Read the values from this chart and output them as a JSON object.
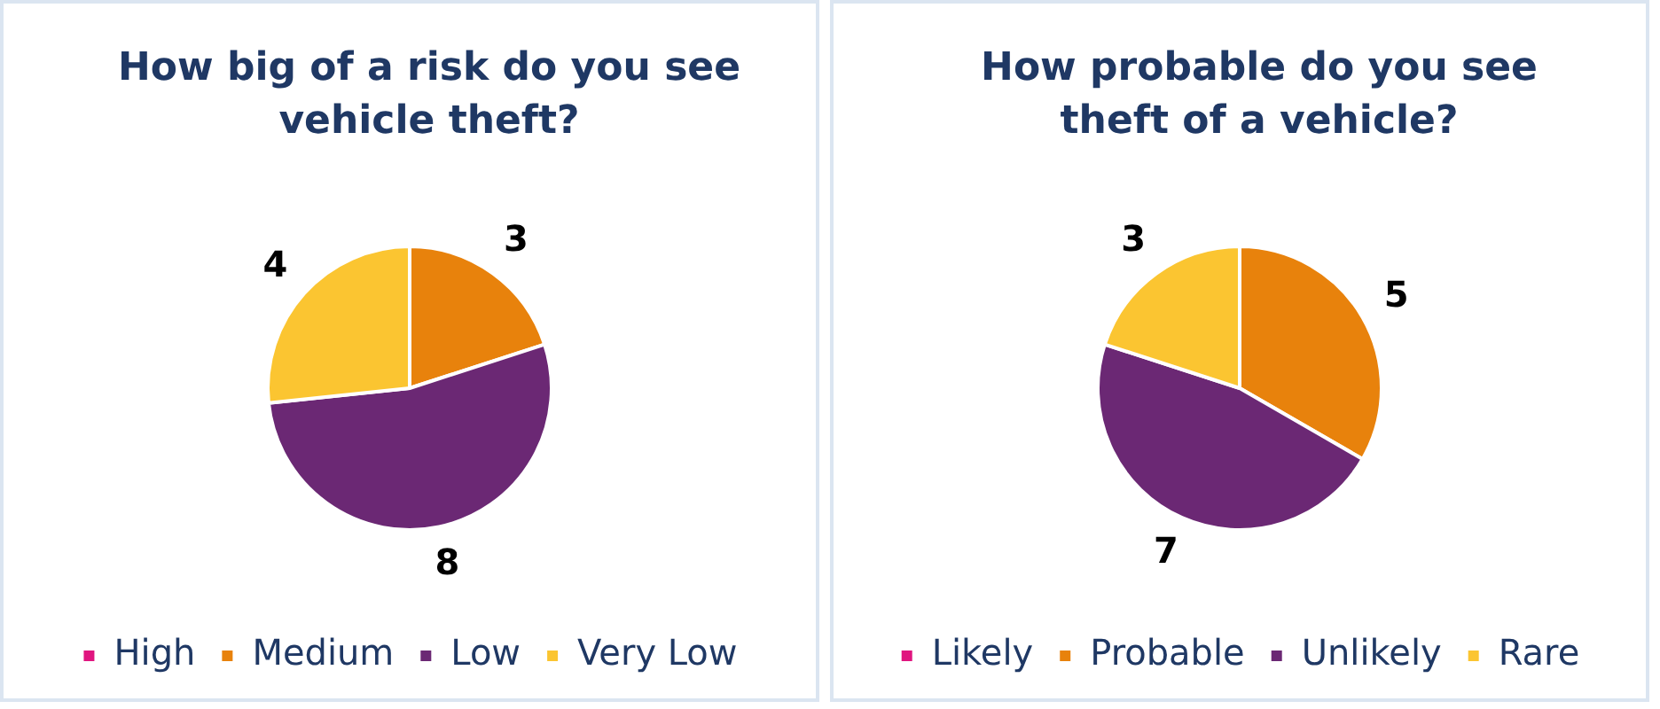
{
  "chart_data": [
    {
      "type": "pie",
      "title": "How big of a risk do you see vehicle theft?",
      "categories": [
        "High",
        "Medium",
        "Low",
        "Very Low"
      ],
      "values": [
        0,
        3,
        8,
        4
      ],
      "colors": [
        "#e0157f",
        "#e8820c",
        "#6b2874",
        "#fbc531"
      ],
      "value_labels": [
        null,
        "3",
        "8",
        "4"
      ],
      "legend": "bottom"
    },
    {
      "type": "pie",
      "title": "How probable do you see theft of a vehicle?",
      "categories": [
        "Likely",
        "Probable",
        "Unlikely",
        "Rare"
      ],
      "values": [
        0,
        5,
        7,
        3
      ],
      "colors": [
        "#e0157f",
        "#e8820c",
        "#6b2874",
        "#fbc531"
      ],
      "value_labels": [
        null,
        "5",
        "7",
        "3"
      ],
      "legend": "bottom"
    }
  ]
}
